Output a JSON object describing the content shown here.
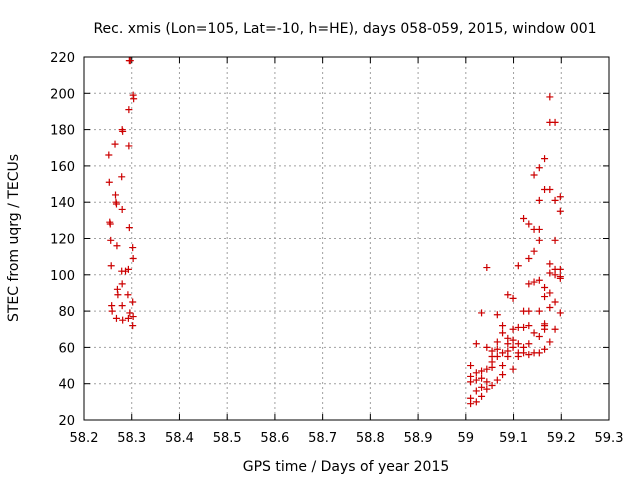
{
  "chart_data": {
    "type": "scatter",
    "title": "Rec. xmis (Lon=105, Lat=-10, h=HE), days 058-059, 2015, window 001",
    "xlabel": "GPS time / Days of year 2015",
    "ylabel": "STEC from uqrg / TECUs",
    "xlim": [
      58.2,
      59.3
    ],
    "ylim": [
      20,
      220
    ],
    "xticks": [
      58.2,
      58.3,
      58.4,
      58.5,
      58.6,
      58.7,
      58.8,
      58.9,
      59.0,
      59.1,
      59.2,
      59.3
    ],
    "xtick_labels": [
      "58.2",
      "58.3",
      "58.4",
      "58.5",
      "58.6",
      "58.7",
      "58.8",
      "58.9",
      "59",
      "59.1",
      "59.2",
      "59.3"
    ],
    "yticks": [
      20,
      40,
      60,
      80,
      100,
      120,
      140,
      160,
      180,
      200,
      220
    ],
    "ytick_labels": [
      "20",
      "40",
      "60",
      "80",
      "100",
      "120",
      "140",
      "160",
      "180",
      "200",
      "220"
    ],
    "grid": true,
    "marker": "plus",
    "color": "#cc0000",
    "series": [
      {
        "points": [
          [
            58.252,
            166
          ],
          [
            58.253,
            151
          ],
          [
            58.254,
            129
          ],
          [
            58.255,
            128
          ],
          [
            58.256,
            119
          ],
          [
            58.257,
            105
          ],
          [
            58.258,
            83
          ],
          [
            58.259,
            80
          ],
          [
            58.265,
            172
          ],
          [
            58.266,
            144
          ],
          [
            58.267,
            140
          ],
          [
            58.268,
            139
          ],
          [
            58.269,
            116
          ],
          [
            58.27,
            92
          ],
          [
            58.271,
            89
          ],
          [
            58.268,
            76
          ],
          [
            58.28,
            180
          ],
          [
            58.281,
            179
          ],
          [
            58.279,
            154
          ],
          [
            58.28,
            136
          ],
          [
            58.279,
            102
          ],
          [
            58.28,
            95
          ],
          [
            58.28,
            83
          ],
          [
            58.281,
            75
          ],
          [
            58.295,
            218
          ],
          [
            58.297,
            218
          ],
          [
            58.294,
            191
          ],
          [
            58.294,
            171
          ],
          [
            58.295,
            126
          ],
          [
            58.293,
            103
          ],
          [
            58.292,
            89
          ],
          [
            58.293,
            76
          ],
          [
            58.296,
            79
          ],
          [
            58.303,
            199
          ],
          [
            58.304,
            197
          ],
          [
            58.302,
            115
          ],
          [
            58.303,
            109
          ],
          [
            58.302,
            85
          ],
          [
            58.303,
            77
          ],
          [
            58.302,
            72
          ],
          [
            58.287,
            102
          ],
          [
            59.01,
            50
          ],
          [
            59.01,
            44
          ],
          [
            59.01,
            41
          ],
          [
            59.01,
            32
          ],
          [
            59.01,
            29
          ],
          [
            59.022,
            62
          ],
          [
            59.022,
            46
          ],
          [
            59.022,
            42
          ],
          [
            59.022,
            36
          ],
          [
            59.022,
            30
          ],
          [
            59.033,
            79
          ],
          [
            59.033,
            47
          ],
          [
            59.033,
            43
          ],
          [
            59.033,
            38
          ],
          [
            59.033,
            33
          ],
          [
            59.044,
            104
          ],
          [
            59.044,
            60
          ],
          [
            59.044,
            48
          ],
          [
            59.044,
            41
          ],
          [
            59.044,
            37
          ],
          [
            59.055,
            58
          ],
          [
            59.055,
            55
          ],
          [
            59.055,
            52
          ],
          [
            59.055,
            49
          ],
          [
            59.055,
            39
          ],
          [
            59.066,
            78
          ],
          [
            59.066,
            63
          ],
          [
            59.066,
            59
          ],
          [
            59.066,
            55
          ],
          [
            59.066,
            42
          ],
          [
            59.077,
            72
          ],
          [
            59.077,
            68
          ],
          [
            59.077,
            57
          ],
          [
            59.077,
            50
          ],
          [
            59.077,
            45
          ],
          [
            59.088,
            89
          ],
          [
            59.088,
            65
          ],
          [
            59.088,
            62
          ],
          [
            59.088,
            58
          ],
          [
            59.088,
            55
          ],
          [
            59.099,
            87
          ],
          [
            59.099,
            70
          ],
          [
            59.099,
            64
          ],
          [
            59.099,
            60
          ],
          [
            59.099,
            48
          ],
          [
            59.11,
            105
          ],
          [
            59.11,
            71
          ],
          [
            59.11,
            62
          ],
          [
            59.11,
            57
          ],
          [
            59.11,
            55
          ],
          [
            59.121,
            131
          ],
          [
            59.121,
            80
          ],
          [
            59.121,
            71
          ],
          [
            59.121,
            60
          ],
          [
            59.121,
            57
          ],
          [
            59.132,
            128
          ],
          [
            59.132,
            109
          ],
          [
            59.132,
            95
          ],
          [
            59.132,
            80
          ],
          [
            59.132,
            72
          ],
          [
            59.132,
            62
          ],
          [
            59.132,
            56
          ],
          [
            59.143,
            155
          ],
          [
            59.143,
            125
          ],
          [
            59.143,
            113
          ],
          [
            59.143,
            96
          ],
          [
            59.143,
            68
          ],
          [
            59.143,
            57
          ],
          [
            59.154,
            159
          ],
          [
            59.154,
            141
          ],
          [
            59.154,
            125
          ],
          [
            59.154,
            119
          ],
          [
            59.154,
            97
          ],
          [
            59.154,
            80
          ],
          [
            59.154,
            66
          ],
          [
            59.154,
            57
          ],
          [
            59.165,
            164
          ],
          [
            59.165,
            147
          ],
          [
            59.165,
            93
          ],
          [
            59.165,
            88
          ],
          [
            59.165,
            73
          ],
          [
            59.165,
            72
          ],
          [
            59.165,
            70
          ],
          [
            59.165,
            59
          ],
          [
            59.176,
            198
          ],
          [
            59.176,
            184
          ],
          [
            59.176,
            147
          ],
          [
            59.176,
            106
          ],
          [
            59.176,
            101
          ],
          [
            59.176,
            90
          ],
          [
            59.176,
            82
          ],
          [
            59.176,
            63
          ],
          [
            59.187,
            184
          ],
          [
            59.187,
            141
          ],
          [
            59.187,
            119
          ],
          [
            59.187,
            103
          ],
          [
            59.187,
            100
          ],
          [
            59.187,
            85
          ],
          [
            59.187,
            70
          ],
          [
            59.198,
            143
          ],
          [
            59.198,
            135
          ],
          [
            59.198,
            103
          ],
          [
            59.198,
            99
          ],
          [
            59.198,
            98
          ],
          [
            59.198,
            79
          ]
        ]
      }
    ]
  }
}
